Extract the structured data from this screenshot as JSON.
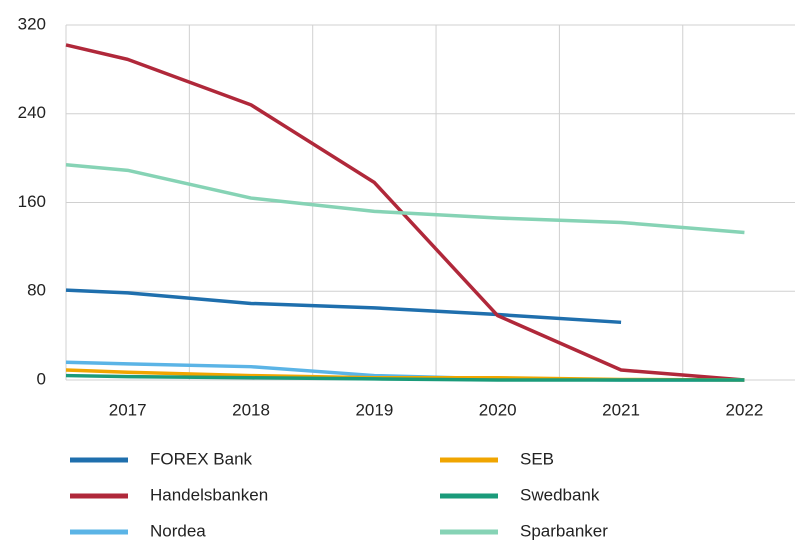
{
  "chart_data": {
    "type": "line",
    "x": [
      2016.5,
      2017,
      2018,
      2019,
      2020,
      2021,
      2022
    ],
    "xlim": [
      2016.5,
      2022.41
    ],
    "xticks": [
      2017,
      2018,
      2019,
      2020,
      2021,
      2022
    ],
    "ylim": [
      0,
      320
    ],
    "yticks": [
      0,
      80,
      160,
      240,
      320
    ],
    "grid": true,
    "legend": "bottom",
    "series": [
      {
        "name": "FOREX Bank",
        "color": "#1f6fad",
        "values": [
          81,
          78.5,
          69,
          65,
          59,
          52,
          null
        ]
      },
      {
        "name": "Handelsbanken",
        "color": "#b0283a",
        "values": [
          302,
          289,
          248,
          178,
          58,
          9,
          0
        ]
      },
      {
        "name": "Nordea",
        "color": "#5bb4e6",
        "values": [
          16,
          14.5,
          12,
          4,
          1,
          0,
          0
        ]
      },
      {
        "name": "SEB",
        "color": "#f0a500",
        "values": [
          9,
          7,
          4,
          2,
          2,
          0.5,
          0
        ]
      },
      {
        "name": "Swedbank",
        "color": "#1a9b7a",
        "values": [
          4,
          3,
          2,
          1,
          0,
          0,
          0
        ]
      },
      {
        "name": "Sparbanker",
        "color": "#86d3b5",
        "values": [
          194,
          189,
          164,
          152,
          146,
          142,
          133
        ]
      }
    ]
  }
}
